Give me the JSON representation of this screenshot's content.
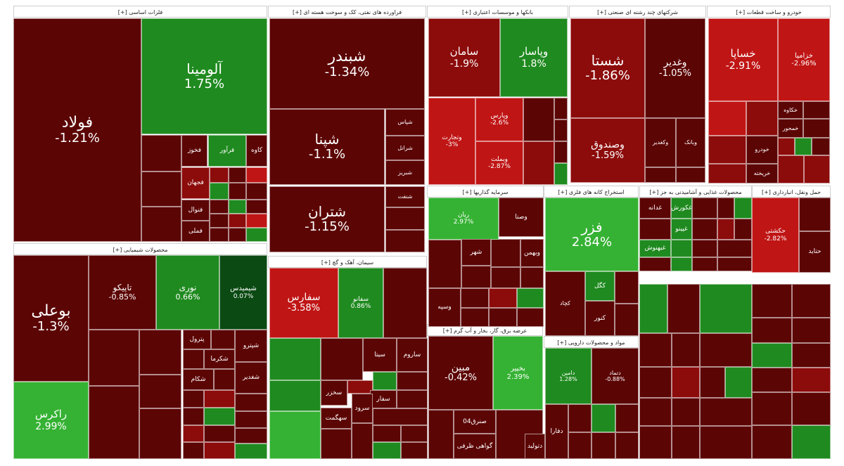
{
  "chart_data": {
    "type": "treemap",
    "title": "",
    "colors": {
      "dark_red": "#5c0505",
      "red": "#8c0b0b",
      "bright_red": "#c01515",
      "dark_green": "#0b4a13",
      "green": "#1f8a1f",
      "bright_green": "#35b233",
      "header_bg": "#ffffff"
    },
    "sectors": [
      {
        "name": "فلزات اساسی [+]",
        "stocks": [
          {
            "symbol": "فولاد",
            "change": "-1.21%",
            "value": -1.21
          },
          {
            "symbol": "آلومینا",
            "change": "1.75%",
            "value": 1.75
          },
          {
            "symbol": "فخوز",
            "change": "",
            "value": -1.0
          },
          {
            "symbol": "فرآور",
            "change": "",
            "value": 1.2
          },
          {
            "symbol": "کاوه",
            "change": "",
            "value": -1.0
          },
          {
            "symbol": "فجهان",
            "change": "",
            "value": -1.5
          },
          {
            "symbol": "فنوال",
            "change": "",
            "value": -1.3
          },
          {
            "symbol": "فملی",
            "change": "",
            "value": -1.0
          }
        ]
      },
      {
        "name": "فراورده های نفتی، کک و سوخت هسته ای [+]",
        "stocks": [
          {
            "symbol": "شبندر",
            "change": "-1.34%",
            "value": -1.34
          },
          {
            "symbol": "شپنا",
            "change": "-1.1%",
            "value": -1.1
          },
          {
            "symbol": "شتران",
            "change": "-1.15%",
            "value": -1.15
          },
          {
            "symbol": "شپاس",
            "change": "",
            "value": -1.0
          },
          {
            "symbol": "شرانل",
            "change": "",
            "value": -1.0
          },
          {
            "symbol": "شبریز",
            "change": "",
            "value": -1.0
          },
          {
            "symbol": "شنفت",
            "change": "",
            "value": -1.0
          }
        ]
      },
      {
        "name": "بانکها و موسسات اعتباری [+]",
        "stocks": [
          {
            "symbol": "سامان",
            "change": "-1.9%",
            "value": -1.9
          },
          {
            "symbol": "وپاسار",
            "change": "1.8%",
            "value": 1.8
          },
          {
            "symbol": "وتجارت",
            "change": "-3%",
            "value": -3.0
          },
          {
            "symbol": "وپارس",
            "change": "-2.6%",
            "value": -2.6
          },
          {
            "symbol": "وبملت",
            "change": "-2.87%",
            "value": -2.87
          }
        ]
      },
      {
        "name": "شرکتهای چند رشته ای صنعتی [+]",
        "stocks": [
          {
            "symbol": "شستا",
            "change": "-1.86%",
            "value": -1.86
          },
          {
            "symbol": "وغدیر",
            "change": "-1.05%",
            "value": -1.05
          },
          {
            "symbol": "وصندوق",
            "change": "-1.59%",
            "value": -1.59
          },
          {
            "symbol": "وکغدیر",
            "change": "",
            "value": -1.0
          },
          {
            "symbol": "وبانک",
            "change": "",
            "value": -1.0
          }
        ]
      },
      {
        "name": "خودرو و ساخت قطعات [+]",
        "stocks": [
          {
            "symbol": "خساپا",
            "change": "-2.91%",
            "value": -2.91
          },
          {
            "symbol": "خزامیا",
            "change": "-2.96%",
            "value": -2.96
          },
          {
            "symbol": "خکاوه",
            "change": "",
            "value": -1.0
          },
          {
            "symbol": "خودرو",
            "change": "",
            "value": -1.0
          },
          {
            "symbol": "خمحور",
            "change": "",
            "value": -1.0
          },
          {
            "symbol": "خریخته",
            "change": "",
            "value": -1.0
          }
        ]
      },
      {
        "name": "محصولات شیمیایی [+]",
        "stocks": [
          {
            "symbol": "بوعلی",
            "change": "-1.3%",
            "value": -1.3
          },
          {
            "symbol": "راکرس",
            "change": "2.99%",
            "value": 2.99
          },
          {
            "symbol": "تاپیکو",
            "change": "-0.85%",
            "value": -0.85
          },
          {
            "symbol": "نوری",
            "change": "0.66%",
            "value": 0.66
          },
          {
            "symbol": "شیمیدس",
            "change": "0.07%",
            "value": 0.07
          },
          {
            "symbol": "شپترو",
            "change": "",
            "value": -1.0
          },
          {
            "symbol": "شکرما",
            "change": "",
            "value": -1.0
          },
          {
            "symbol": "شکام",
            "change": "",
            "value": -1.0
          },
          {
            "symbol": "شغدیر",
            "change": "",
            "value": -1.0
          },
          {
            "symbol": "پترول",
            "change": "",
            "value": -1.0
          }
        ]
      },
      {
        "name": "سیمان، آهک و گچ [+]",
        "stocks": [
          {
            "symbol": "سفارس",
            "change": "-3.58%",
            "value": -3.58
          },
          {
            "symbol": "سفانو",
            "change": "0.86%",
            "value": 0.86
          },
          {
            "symbol": "ساروم",
            "change": "",
            "value": -1.0
          },
          {
            "symbol": "سیتا",
            "change": "",
            "value": -1.0
          },
          {
            "symbol": "سفار",
            "change": "",
            "value": -1.0
          },
          {
            "symbol": "سخزر",
            "change": "",
            "value": -1.0
          },
          {
            "symbol": "سهگمت",
            "change": "",
            "value": -1.0
          },
          {
            "symbol": "سرود",
            "change": "",
            "value": -1.0
          }
        ]
      },
      {
        "name": "سرمایه گذاریها [+]",
        "stocks": [
          {
            "symbol": "ریان",
            "change": "2.97%",
            "value": 2.97
          },
          {
            "symbol": "وصنا",
            "change": "",
            "value": -1.0
          },
          {
            "symbol": "شهر",
            "change": "",
            "value": -1.0
          },
          {
            "symbol": "وسپه",
            "change": "",
            "value": -1.0
          },
          {
            "symbol": "وبهمن",
            "change": "",
            "value": -1.0
          }
        ]
      },
      {
        "name": "استخراج کانه های فلزی [+]",
        "stocks": [
          {
            "symbol": "فزر",
            "change": "2.84%",
            "value": 2.84
          },
          {
            "symbol": "کچاد",
            "change": "",
            "value": -1.0
          },
          {
            "symbol": "کگل",
            "change": "",
            "value": 1.0
          },
          {
            "symbol": "کنور",
            "change": "",
            "value": -1.0
          }
        ]
      },
      {
        "name": "عرضه برق، گاز، بخار و آب گرم [+]",
        "stocks": [
          {
            "symbol": "مبین",
            "change": "-0.42%",
            "value": -0.42
          },
          {
            "symbol": "بخپیر",
            "change": "2.39%",
            "value": 2.39
          },
          {
            "symbol": "صنرق04",
            "change": "",
            "value": -1.0
          },
          {
            "symbol": "گواهی ظرفی",
            "change": "",
            "value": -1.0
          }
        ]
      },
      {
        "name": "مواد و محصولات دارویی [+]",
        "stocks": [
          {
            "symbol": "دامین",
            "change": "1.28%",
            "value": 1.28
          },
          {
            "symbol": "دتماد",
            "change": "-0.88%",
            "value": -0.88
          },
          {
            "symbol": "دفارا",
            "change": "",
            "value": -1.0
          },
          {
            "symbol": "دتولید",
            "change": "",
            "value": -1.0
          }
        ]
      },
      {
        "name": "محصولات غذایی و آشامیدنی به جز [+]",
        "stocks": [
          {
            "symbol": "غکورش",
            "change": "",
            "value": 1.0
          },
          {
            "symbol": "غدانه",
            "change": "",
            "value": -1.0
          },
          {
            "symbol": "غپینو",
            "change": "",
            "value": 1.0
          },
          {
            "symbol": "غبهنوش",
            "change": "",
            "value": 1.0
          }
        ]
      },
      {
        "name": "حمل ونقل، انبارداری [+]",
        "stocks": [
          {
            "symbol": "حکشتی",
            "change": "-2.82%",
            "value": -2.82
          },
          {
            "symbol": "حتاید",
            "change": "",
            "value": -1.0
          }
        ]
      }
    ]
  }
}
